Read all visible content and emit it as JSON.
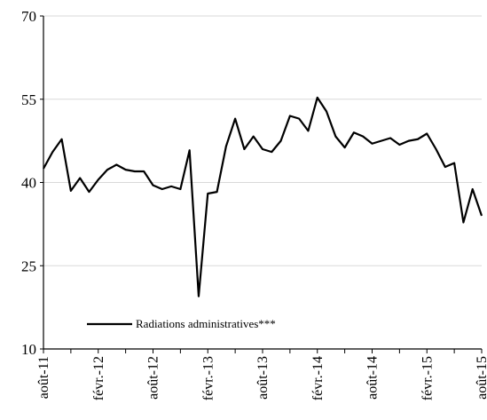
{
  "chart_data": {
    "type": "line",
    "title": "",
    "xlabel": "",
    "ylabel": "",
    "ylim": [
      10,
      70
    ],
    "yticks": [
      10,
      25,
      40,
      55,
      70
    ],
    "grid": true,
    "legend_position": "bottom-left",
    "colors": {
      "line": "#000000",
      "grid": "#d9d9d9",
      "axis": "#000000"
    },
    "x_tick_labels": [
      {
        "label": "août-11",
        "index": 0
      },
      {
        "label": "févr.-12",
        "index": 6
      },
      {
        "label": "août-12",
        "index": 12
      },
      {
        "label": "févr.-13",
        "index": 18
      },
      {
        "label": "août-13",
        "index": 24
      },
      {
        "label": "févr.-14",
        "index": 30
      },
      {
        "label": "août-14",
        "index": 36
      },
      {
        "label": "févr.-15",
        "index": 42
      },
      {
        "label": "août-15",
        "index": 48
      }
    ],
    "series": [
      {
        "name": "Radiations administratives***",
        "values": [
          42.5,
          45.5,
          47.8,
          38.5,
          40.8,
          38.3,
          40.5,
          42.3,
          43.2,
          42.3,
          42.0,
          42.0,
          39.5,
          38.8,
          39.3,
          38.8,
          45.8,
          19.5,
          38.0,
          38.3,
          46.5,
          51.5,
          46.0,
          48.3,
          46.0,
          45.5,
          47.5,
          52.0,
          51.5,
          49.3,
          55.3,
          52.8,
          48.3,
          46.3,
          49.0,
          48.3,
          47.0,
          47.5,
          48.0,
          46.8,
          47.5,
          47.8,
          48.8,
          46.0,
          42.8,
          43.5,
          32.8,
          38.8,
          34.0
        ]
      }
    ]
  }
}
